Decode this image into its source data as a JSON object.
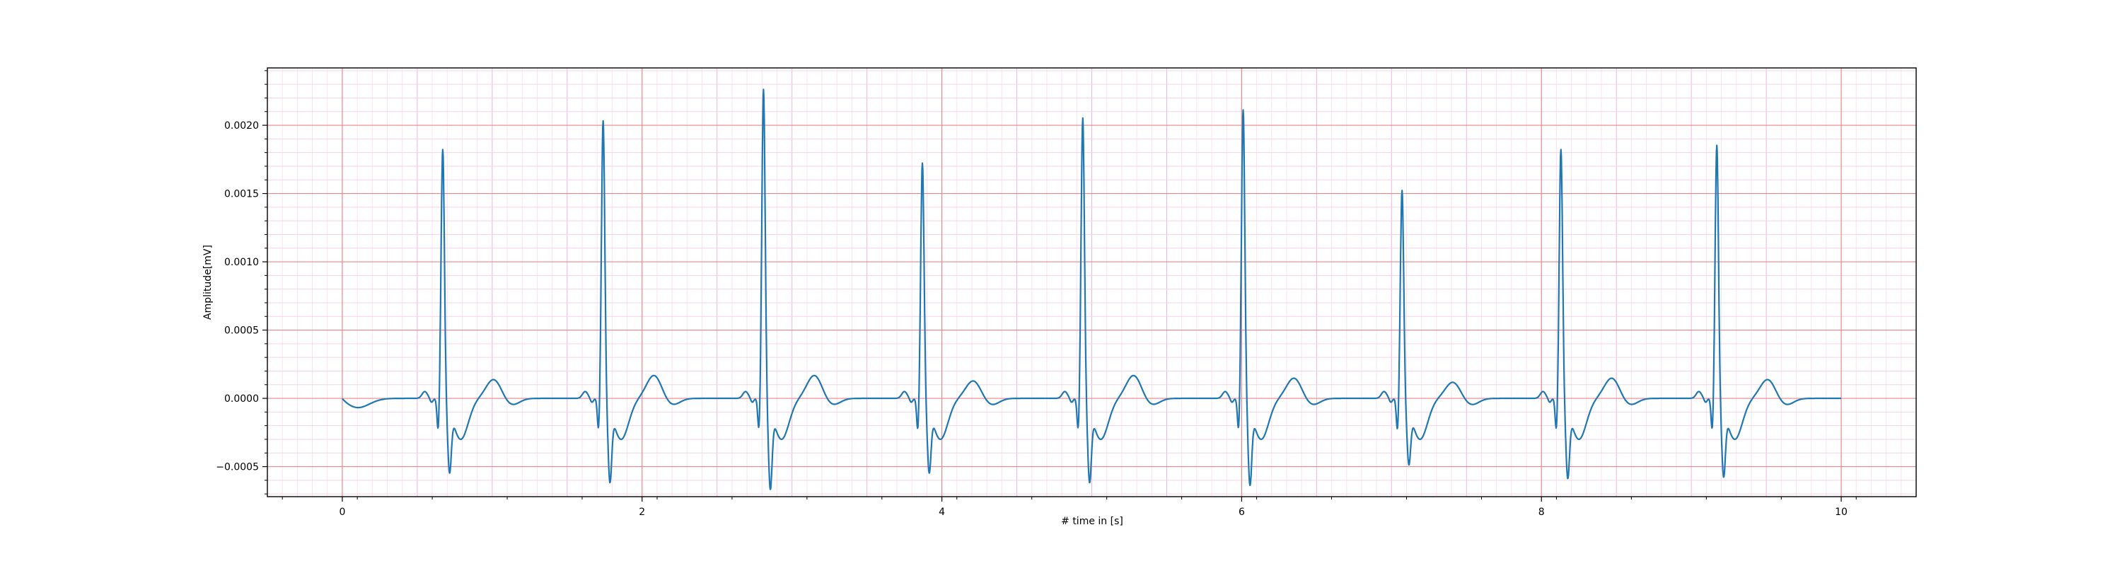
{
  "chart_data": {
    "type": "line",
    "title": "",
    "xlabel": "# time in [s]",
    "ylabel": "Amplitude[mV]",
    "xlim": [
      -0.5,
      10.5
    ],
    "ylim": [
      -0.00072,
      0.00242
    ],
    "x_ticks": [
      0,
      2,
      4,
      6,
      8,
      10
    ],
    "x_tick_labels": [
      "0",
      "2",
      "4",
      "6",
      "8",
      "10"
    ],
    "y_ticks": [
      -0.0005,
      0.0,
      0.0005,
      0.001,
      0.0015,
      0.002
    ],
    "y_tick_labels": [
      "−0.0005",
      "0.0000",
      "0.0005",
      "0.0010",
      "0.0015",
      "0.0020"
    ],
    "grid": {
      "major": true,
      "minor": true,
      "major_color": "#e8888a",
      "minor_color": "#f6cfe6"
    },
    "line_color": "#1f77b4",
    "series": [
      {
        "beats": [
          {
            "r_time": 0.67,
            "r_amp": 0.00184,
            "s_amp": -0.00045,
            "t_amp": 0.00014
          },
          {
            "r_time": 1.74,
            "r_amp": 0.00205,
            "s_amp": -0.00052,
            "t_amp": 0.00017
          },
          {
            "r_time": 2.81,
            "r_amp": 0.00228,
            "s_amp": -0.00057,
            "t_amp": 0.00017
          },
          {
            "r_time": 3.87,
            "r_amp": 0.00174,
            "s_amp": -0.00045,
            "t_amp": 0.00013
          },
          {
            "r_time": 4.94,
            "r_amp": 0.00207,
            "s_amp": -0.00052,
            "t_amp": 0.00017
          },
          {
            "r_time": 6.01,
            "r_amp": 0.00213,
            "s_amp": -0.00054,
            "t_amp": 0.00015
          },
          {
            "r_time": 7.07,
            "r_amp": 0.00154,
            "s_amp": -0.00039,
            "t_amp": 0.00012
          },
          {
            "r_time": 8.13,
            "r_amp": 0.00184,
            "s_amp": -0.00049,
            "t_amp": 0.00015
          },
          {
            "r_time": 9.17,
            "r_amp": 0.00187,
            "s_amp": -0.00048,
            "t_amp": 0.00014
          }
        ],
        "start": [
          0.0,
          3e-05
        ],
        "end": [
          10.0,
          -2e-05
        ]
      }
    ]
  }
}
